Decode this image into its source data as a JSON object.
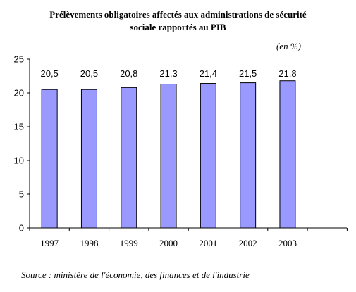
{
  "chart_data": {
    "type": "bar",
    "title_lines": [
      "Prélèvements obligatoires affectés aux administrations de sécurité",
      "sociale rapportés au PIB"
    ],
    "unit": "(en %)",
    "categories": [
      "1997",
      "1998",
      "1999",
      "2000",
      "2001",
      "2002",
      "2003"
    ],
    "values": [
      20.5,
      20.5,
      20.8,
      21.3,
      21.4,
      21.5,
      21.8
    ],
    "value_labels": [
      "20,5",
      "20,5",
      "20,8",
      "21,3",
      "21,4",
      "21,5",
      "21,8"
    ],
    "y_ticks": [
      0,
      5,
      10,
      15,
      20,
      25
    ],
    "ylim": [
      0,
      25
    ],
    "xlabel": "",
    "ylabel": "",
    "grid": false,
    "legend": "none",
    "bar_color": "#9999ff",
    "bar_edge_color": "#000000",
    "source": "Source : ministère de l'économie, des finances et de l'industrie"
  }
}
